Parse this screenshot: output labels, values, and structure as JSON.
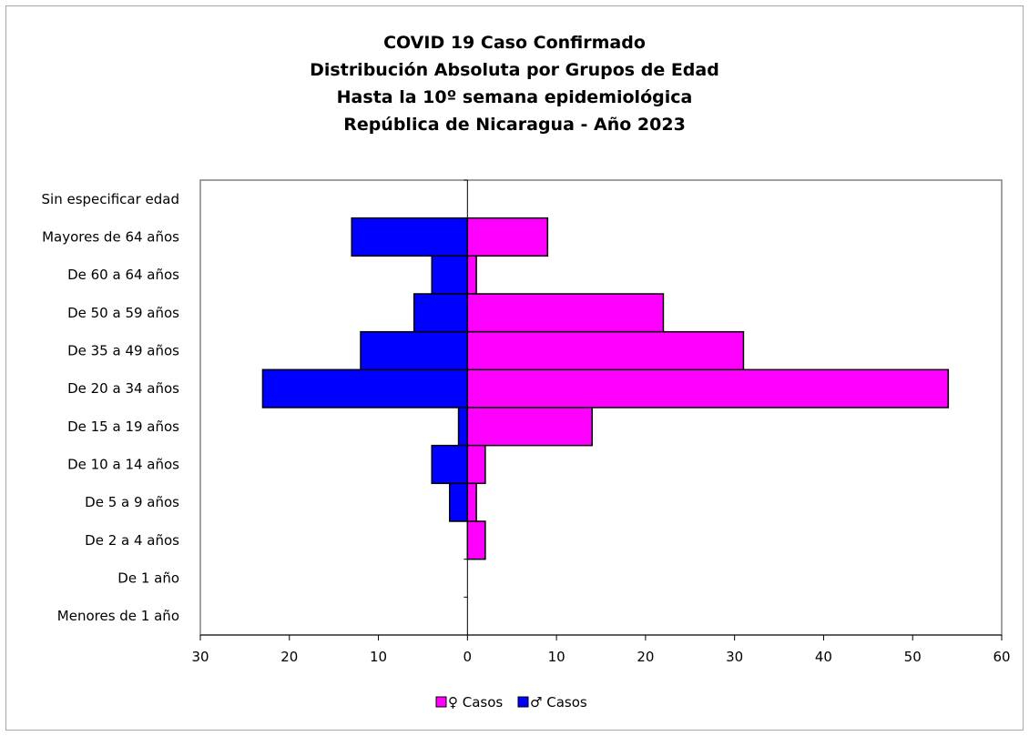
{
  "chart_data": {
    "type": "bar",
    "orientation": "horizontal",
    "title_lines": [
      "COVID 19 Caso Confirmado",
      "Distribución Absoluta por Grupos de Edad",
      "Hasta la 10º semana epidemiológica",
      "República de Nicaragua - Año 2023"
    ],
    "categories": [
      "Sin especificar edad",
      "Mayores de 64 años",
      "De 60 a 64 años",
      "De 50 a 59 años",
      "De 35 a 49 años",
      "De 20 a 34 años",
      "De 15 a 19 años",
      "De 10 a 14 años",
      "De 5 a 9 años",
      "De 2 a 4 años",
      "De 1 año",
      "Menores de 1 año"
    ],
    "series": [
      {
        "name": "♀ Casos",
        "color": "#ff00ff",
        "values": [
          0,
          9,
          1,
          22,
          31,
          54,
          14,
          2,
          1,
          2,
          0,
          0
        ]
      },
      {
        "name": "♂ Casos",
        "color": "#0000ff",
        "values": [
          0,
          13,
          4,
          6,
          12,
          23,
          1,
          4,
          2,
          0,
          0,
          0
        ]
      }
    ],
    "xlim": [
      -30,
      60
    ],
    "x_ticks": [
      -30,
      -20,
      -10,
      0,
      10,
      20,
      30,
      40,
      50,
      60
    ],
    "x_tick_labels": [
      "30",
      "20",
      "10",
      "0",
      "10",
      "20",
      "30",
      "40",
      "50",
      "60"
    ],
    "grid": false,
    "legend_position": "bottom"
  }
}
